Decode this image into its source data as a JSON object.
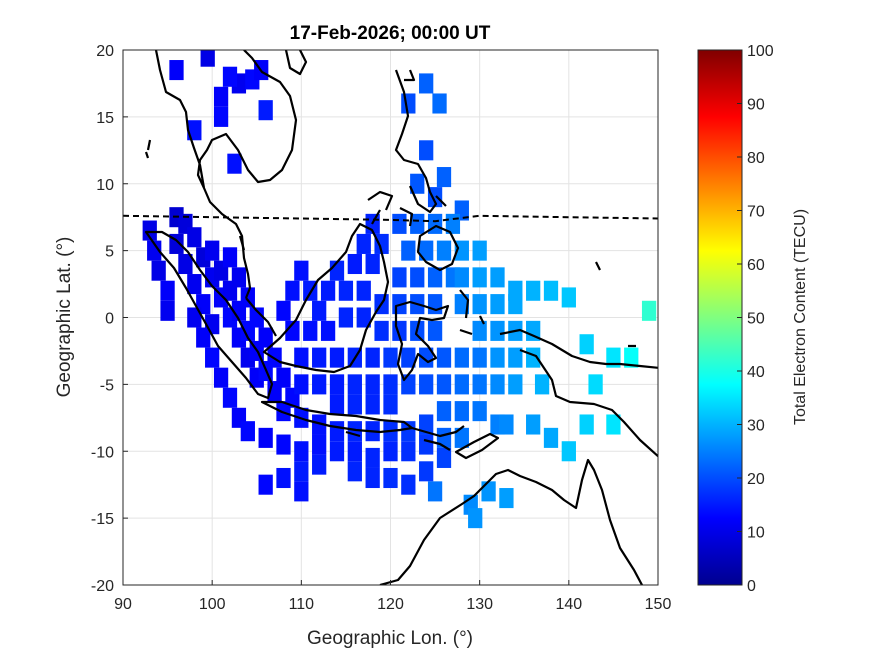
{
  "chart_data": {
    "type": "heatmap",
    "title": "17-Feb-2026; 00:00 UT",
    "xlabel": "Geographic Lon. (°)",
    "ylabel": "Geographic Lat. (°)",
    "xlim": [
      90,
      150
    ],
    "ylim": [
      -20,
      20
    ],
    "xticks": [
      "90",
      "100",
      "110",
      "120",
      "130",
      "140",
      "150"
    ],
    "yticks": [
      "20",
      "15",
      "10",
      "5",
      "0",
      "-5",
      "-10",
      "-15",
      "-20"
    ],
    "grid": true,
    "colorbar": {
      "label": "Total Electron Content (TECU)",
      "range": [
        0,
        100
      ],
      "ticks": [
        "100",
        "90",
        "80",
        "70",
        "60",
        "50",
        "40",
        "30",
        "20",
        "10",
        "0"
      ],
      "colormap": "jet"
    },
    "magnetic_equator": {
      "style": "dashed",
      "points": [
        [
          90,
          7.6
        ],
        [
          100,
          7.5
        ],
        [
          110,
          7.4
        ],
        [
          120,
          7.3
        ],
        [
          125,
          7.2
        ],
        [
          130,
          7.6
        ],
        [
          140,
          7.5
        ],
        [
          150,
          7.4
        ]
      ]
    },
    "cells": [
      [
        96,
        18.5,
        12
      ],
      [
        99.5,
        19.5,
        10
      ],
      [
        103,
        17.5,
        11
      ],
      [
        104.5,
        17.8,
        13
      ],
      [
        105.5,
        18.5,
        12
      ],
      [
        102,
        18,
        13
      ],
      [
        101,
        16.5,
        12
      ],
      [
        101,
        15,
        13
      ],
      [
        98,
        14,
        14
      ],
      [
        106,
        15.5,
        15
      ],
      [
        102.5,
        11.5,
        14
      ],
      [
        122,
        16,
        20
      ],
      [
        124,
        17.5,
        22
      ],
      [
        125.5,
        16,
        23
      ],
      [
        124,
        12.5,
        20
      ],
      [
        123,
        10,
        21
      ],
      [
        126,
        10.5,
        22
      ],
      [
        125,
        9,
        20
      ],
      [
        128,
        8,
        22
      ],
      [
        93,
        6.5,
        10
      ],
      [
        93.5,
        5,
        11
      ],
      [
        94,
        3.5,
        10
      ],
      [
        95,
        2,
        12
      ],
      [
        95,
        0.5,
        11
      ],
      [
        96,
        5.5,
        9
      ],
      [
        97,
        4,
        10
      ],
      [
        98,
        2.5,
        11
      ],
      [
        99,
        1,
        12
      ],
      [
        100,
        -0.5,
        11
      ],
      [
        96,
        7.5,
        8
      ],
      [
        97,
        7,
        9
      ],
      [
        98,
        6,
        10
      ],
      [
        99,
        4.5,
        9
      ],
      [
        100,
        3,
        11
      ],
      [
        101,
        1.5,
        12
      ],
      [
        102,
        0,
        13
      ],
      [
        103,
        -1.5,
        12
      ],
      [
        104,
        -3,
        11
      ],
      [
        105,
        -4.5,
        12
      ],
      [
        100,
        5,
        11
      ],
      [
        101,
        3.5,
        10
      ],
      [
        102,
        2,
        11
      ],
      [
        103,
        0.5,
        12
      ],
      [
        104,
        -1,
        13
      ],
      [
        105,
        -2.5,
        12
      ],
      [
        106,
        -4,
        13
      ],
      [
        107,
        -5.5,
        12
      ],
      [
        108,
        -7,
        13
      ],
      [
        102,
        4.5,
        12
      ],
      [
        103,
        3,
        11
      ],
      [
        104,
        1.5,
        12
      ],
      [
        105,
        0,
        13
      ],
      [
        106,
        -1.5,
        12
      ],
      [
        107,
        -3,
        13
      ],
      [
        108,
        -4.5,
        12
      ],
      [
        109,
        -6,
        13
      ],
      [
        110,
        -7.5,
        14
      ],
      [
        98,
        0,
        11
      ],
      [
        99,
        -1.5,
        12
      ],
      [
        100,
        -3,
        13
      ],
      [
        101,
        -4.5,
        12
      ],
      [
        102,
        -6,
        13
      ],
      [
        103,
        -7.5,
        12
      ],
      [
        104,
        -8.5,
        13
      ],
      [
        106,
        -9,
        12
      ],
      [
        108,
        -9.5,
        13
      ],
      [
        110,
        -10,
        14
      ],
      [
        112,
        -9.5,
        14
      ],
      [
        114,
        -10,
        15
      ],
      [
        116,
        -10,
        15
      ],
      [
        118,
        -10.5,
        16
      ],
      [
        120,
        -10,
        16
      ],
      [
        122,
        -10,
        17
      ],
      [
        124,
        -9.5,
        18
      ],
      [
        112,
        -8,
        14
      ],
      [
        114,
        -8.5,
        15
      ],
      [
        116,
        -8.5,
        16
      ],
      [
        118,
        -8.5,
        16
      ],
      [
        120,
        -8.5,
        17
      ],
      [
        122,
        -8.5,
        18
      ],
      [
        124,
        -8,
        19
      ],
      [
        108,
        -12,
        14
      ],
      [
        110,
        -11.5,
        15
      ],
      [
        112,
        -11,
        15
      ],
      [
        116,
        -11.5,
        16
      ],
      [
        118,
        -12,
        16
      ],
      [
        120,
        -12,
        17
      ],
      [
        122,
        -12.5,
        17
      ],
      [
        124,
        -11.5,
        18
      ],
      [
        126,
        -10.5,
        19
      ],
      [
        108,
        0.5,
        13
      ],
      [
        109,
        2,
        14
      ],
      [
        110,
        3.5,
        14
      ],
      [
        111,
        2,
        15
      ],
      [
        112,
        0.5,
        15
      ],
      [
        113,
        2,
        15
      ],
      [
        114,
        3.5,
        16
      ],
      [
        113,
        -1,
        14
      ],
      [
        111,
        -1,
        14
      ],
      [
        109,
        -1,
        13
      ],
      [
        110,
        -3,
        14
      ],
      [
        112,
        -3,
        15
      ],
      [
        114,
        -3,
        15
      ],
      [
        116,
        -3,
        16
      ],
      [
        118,
        -3,
        16
      ],
      [
        110,
        -5,
        14
      ],
      [
        112,
        -5,
        15
      ],
      [
        114,
        -5,
        15
      ],
      [
        116,
        -5,
        16
      ],
      [
        118,
        -5,
        16
      ],
      [
        120,
        -5,
        17
      ],
      [
        114,
        -6.5,
        15
      ],
      [
        116,
        -6.5,
        16
      ],
      [
        118,
        -6.5,
        16
      ],
      [
        120,
        -6.5,
        17
      ],
      [
        115,
        0,
        16
      ],
      [
        117,
        0,
        16
      ],
      [
        115,
        2,
        16
      ],
      [
        117,
        2,
        16
      ],
      [
        116,
        4,
        15
      ],
      [
        118,
        4,
        16
      ],
      [
        117,
        5.5,
        16
      ],
      [
        119,
        5.5,
        17
      ],
      [
        118,
        7,
        16
      ],
      [
        119,
        1,
        17
      ],
      [
        119,
        -1,
        17
      ],
      [
        121,
        -1,
        18
      ],
      [
        121,
        1,
        19
      ],
      [
        121,
        3,
        19
      ],
      [
        123,
        3,
        20
      ],
      [
        123,
        1,
        20
      ],
      [
        123,
        -1,
        20
      ],
      [
        125,
        -1,
        21
      ],
      [
        125,
        1,
        21
      ],
      [
        125,
        3,
        22
      ],
      [
        127,
        3,
        24
      ],
      [
        120,
        -3,
        18
      ],
      [
        122,
        -3,
        19
      ],
      [
        124,
        -3,
        20
      ],
      [
        126,
        -3,
        21
      ],
      [
        122,
        -5,
        19
      ],
      [
        124,
        -5,
        20
      ],
      [
        126,
        -5,
        21
      ],
      [
        128,
        -5,
        23
      ],
      [
        130,
        -5,
        24
      ],
      [
        130,
        -3,
        24
      ],
      [
        128,
        -3,
        23
      ],
      [
        126,
        -7,
        22
      ],
      [
        128,
        -7,
        23
      ],
      [
        130,
        -7,
        24
      ],
      [
        132,
        -8,
        25
      ],
      [
        126,
        -9,
        22
      ],
      [
        128,
        -9,
        24
      ],
      [
        122,
        5,
        22
      ],
      [
        124,
        5,
        23
      ],
      [
        126,
        5,
        25
      ],
      [
        128,
        5,
        27
      ],
      [
        130,
        5,
        28
      ],
      [
        121,
        7,
        20
      ],
      [
        123,
        7,
        22
      ],
      [
        125,
        7,
        23
      ],
      [
        127,
        7,
        25
      ],
      [
        128,
        3,
        26
      ],
      [
        130,
        3,
        28
      ],
      [
        132,
        3,
        28
      ],
      [
        128,
        1,
        25
      ],
      [
        130,
        1,
        27
      ],
      [
        132,
        1,
        28
      ],
      [
        134,
        1,
        29
      ],
      [
        130,
        -1,
        26
      ],
      [
        132,
        -1,
        27
      ],
      [
        134,
        -1,
        28
      ],
      [
        136,
        -1,
        29
      ],
      [
        134,
        2,
        29
      ],
      [
        136,
        2,
        30
      ],
      [
        138,
        2,
        31
      ],
      [
        140,
        1.5,
        32
      ],
      [
        132,
        -3,
        27
      ],
      [
        134,
        -3,
        28
      ],
      [
        136,
        -3,
        30
      ],
      [
        132,
        -5,
        26
      ],
      [
        134,
        -5,
        28
      ],
      [
        137,
        -5,
        30
      ],
      [
        133,
        -8,
        26
      ],
      [
        136,
        -8,
        28
      ],
      [
        138,
        -9,
        29
      ],
      [
        142,
        -8,
        33
      ],
      [
        140,
        -10,
        32
      ],
      [
        145,
        -8,
        35
      ],
      [
        143,
        -5,
        34
      ],
      [
        142,
        -2,
        33
      ],
      [
        145,
        -3,
        35
      ],
      [
        147,
        -3,
        38
      ],
      [
        149,
        0.5,
        42
      ],
      [
        131,
        -13,
        27
      ],
      [
        133,
        -13.5,
        28
      ],
      [
        129,
        -14,
        26
      ],
      [
        129.5,
        -15,
        27
      ],
      [
        125,
        -13,
        24
      ],
      [
        106,
        -12.5,
        13
      ],
      [
        110,
        -13,
        14
      ]
    ]
  }
}
